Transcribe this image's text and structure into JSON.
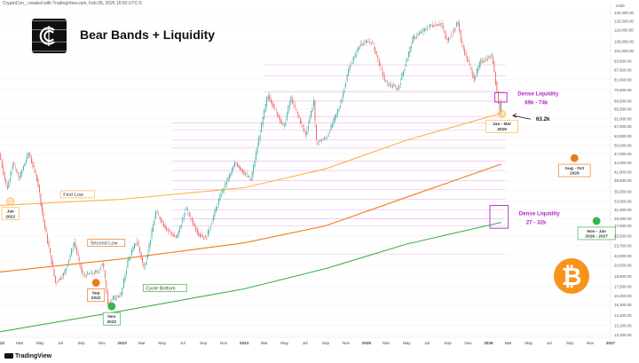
{
  "header": {
    "credit": "CryptoCon_ created with TradingView.com, Feb 08, 2026 16:50 UTC-5"
  },
  "title": "Bear Bands + Liquidity",
  "footer": {
    "brand": "TradingView"
  },
  "colors": {
    "up": "#26a69a",
    "down": "#ef5350",
    "dense_liquidity": "#b224c8",
    "first_low_band": "#ffb347",
    "second_low_band": "#f07a1a",
    "cycle_bottom_band": "#3db34a",
    "bitcoin": "#f7931a"
  },
  "chart_data": {
    "type": "line",
    "scale": "log",
    "ylim": [
      12000,
      138000
    ],
    "xlim": [
      "2022-01-01",
      "2027-01-01"
    ],
    "y_ticks": [
      "134,000.00",
      "126,000.00",
      "118,000.00",
      "108,000.00",
      "101,000.00",
      "93,500.00",
      "87,500.00",
      "81,500.00",
      "75,500.00",
      "69,500.00",
      "65,500.00",
      "61,000.00",
      "57,500.00",
      "53,500.00",
      "50,000.00",
      "47,000.00",
      "44,000.00",
      "41,000.00",
      "38,500.00",
      "35,500.00",
      "33,000.00",
      "31,000.00",
      "29,000.00",
      "27,500.00",
      "25,500.00",
      "23,700.00",
      "22,000.00",
      "20,500.00",
      "18,900.00",
      "17,500.00",
      "16,300.00",
      "15,300.00",
      "14,100.00",
      "13,100.00",
      "12,200.00"
    ],
    "y_unit": "USD",
    "x_ticks": [
      {
        "label": "2022",
        "date": "2022-01-01",
        "bold": true
      },
      {
        "label": "Mar",
        "date": "2022-03-01"
      },
      {
        "label": "May",
        "date": "2022-05-01"
      },
      {
        "label": "Jul",
        "date": "2022-07-01"
      },
      {
        "label": "Sep",
        "date": "2022-09-01"
      },
      {
        "label": "Nov",
        "date": "2022-11-01"
      },
      {
        "label": "2023",
        "date": "2023-01-01",
        "bold": true
      },
      {
        "label": "Mar",
        "date": "2023-03-01"
      },
      {
        "label": "May",
        "date": "2023-05-01"
      },
      {
        "label": "Jul",
        "date": "2023-07-01"
      },
      {
        "label": "Sep",
        "date": "2023-09-01"
      },
      {
        "label": "Nov",
        "date": "2023-11-01"
      },
      {
        "label": "2024",
        "date": "2024-01-01",
        "bold": true
      },
      {
        "label": "Mar",
        "date": "2024-03-01"
      },
      {
        "label": "May",
        "date": "2024-05-01"
      },
      {
        "label": "Jul",
        "date": "2024-07-01"
      },
      {
        "label": "Sep",
        "date": "2024-09-01"
      },
      {
        "label": "Nov",
        "date": "2024-11-01"
      },
      {
        "label": "2025",
        "date": "2025-01-01",
        "bold": true
      },
      {
        "label": "Mar",
        "date": "2025-03-01"
      },
      {
        "label": "May",
        "date": "2025-05-01"
      },
      {
        "label": "Jul",
        "date": "2025-07-01"
      },
      {
        "label": "Sep",
        "date": "2025-09-01"
      },
      {
        "label": "Nov",
        "date": "2025-11-01"
      },
      {
        "label": "2026",
        "date": "2026-01-01",
        "bold": true
      },
      {
        "label": "Mar",
        "date": "2026-03-01"
      },
      {
        "label": "May",
        "date": "2026-05-01"
      },
      {
        "label": "Jul",
        "date": "2026-07-01"
      },
      {
        "label": "Sep",
        "date": "2026-09-01"
      },
      {
        "label": "Nov",
        "date": "2026-11-01"
      },
      {
        "label": "2027",
        "date": "2027-01-01",
        "bold": true
      }
    ],
    "price": [
      [
        "2022-01-01",
        47000
      ],
      [
        "2022-01-24",
        36000
      ],
      [
        "2022-02-10",
        44000
      ],
      [
        "2022-03-01",
        39000
      ],
      [
        "2022-03-29",
        47500
      ],
      [
        "2022-04-25",
        38500
      ],
      [
        "2022-05-12",
        29000
      ],
      [
        "2022-06-18",
        18000
      ],
      [
        "2022-07-13",
        19200
      ],
      [
        "2022-08-13",
        24300
      ],
      [
        "2022-09-07",
        19000
      ],
      [
        "2022-10-24",
        19500
      ],
      [
        "2022-11-06",
        21000
      ],
      [
        "2022-11-21",
        15600
      ],
      [
        "2022-12-31",
        16500
      ],
      [
        "2023-01-20",
        21200
      ],
      [
        "2023-02-16",
        24700
      ],
      [
        "2023-03-10",
        19800
      ],
      [
        "2023-04-14",
        30500
      ],
      [
        "2023-05-15",
        27000
      ],
      [
        "2023-06-15",
        25000
      ],
      [
        "2023-07-13",
        31400
      ],
      [
        "2023-08-18",
        26000
      ],
      [
        "2023-09-11",
        25000
      ],
      [
        "2023-10-24",
        34500
      ],
      [
        "2023-12-08",
        44000
      ],
      [
        "2024-01-23",
        38500
      ],
      [
        "2024-02-28",
        61000
      ],
      [
        "2024-03-14",
        73000
      ],
      [
        "2024-05-01",
        57000
      ],
      [
        "2024-05-21",
        71500
      ],
      [
        "2024-07-05",
        54000
      ],
      [
        "2024-07-29",
        70000
      ],
      [
        "2024-08-05",
        51000
      ],
      [
        "2024-09-06",
        53000
      ],
      [
        "2024-10-15",
        67000
      ],
      [
        "2024-11-12",
        89000
      ],
      [
        "2024-12-17",
        107000
      ],
      [
        "2025-01-20",
        108000
      ],
      [
        "2025-02-28",
        80000
      ],
      [
        "2025-04-07",
        76000
      ],
      [
        "2025-05-22",
        111000
      ],
      [
        "2025-07-14",
        122000
      ],
      [
        "2025-08-14",
        124000
      ],
      [
        "2025-09-01",
        108000
      ],
      [
        "2025-10-06",
        126000
      ],
      [
        "2025-10-10",
        110000
      ],
      [
        "2025-11-21",
        82000
      ],
      [
        "2025-12-10",
        93500
      ],
      [
        "2026-01-14",
        97000
      ],
      [
        "2026-02-05",
        64000
      ],
      [
        "2026-02-08",
        70000
      ]
    ],
    "bands": [
      {
        "name": "First Low",
        "color": "#ffb347",
        "points": [
          [
            "2022-01-01",
            32000
          ],
          [
            "2023-01-01",
            33500
          ],
          [
            "2024-01-01",
            36500
          ],
          [
            "2024-09-01",
            42000
          ],
          [
            "2025-05-01",
            52000
          ],
          [
            "2026-02-08",
            63500
          ]
        ]
      },
      {
        "name": "Second Low",
        "color": "#f07a1a",
        "points": [
          [
            "2022-01-01",
            19500
          ],
          [
            "2023-01-01",
            21500
          ],
          [
            "2024-01-01",
            24200
          ],
          [
            "2024-09-01",
            27500
          ],
          [
            "2025-05-01",
            34000
          ],
          [
            "2026-02-08",
            43500
          ]
        ]
      },
      {
        "name": "Cycle Bottom",
        "color": "#3db34a",
        "points": [
          [
            "2022-01-01",
            12500
          ],
          [
            "2023-01-01",
            14600
          ],
          [
            "2024-01-01",
            17200
          ],
          [
            "2024-09-01",
            20000
          ],
          [
            "2025-05-01",
            24000
          ],
          [
            "2026-02-08",
            28200
          ]
        ]
      }
    ],
    "liquidity_lines": [
      91000,
      84000,
      74500,
      69500,
      62000,
      59000,
      56000,
      52000,
      49000,
      44500,
      41500,
      38500,
      36000,
      33500,
      31000,
      29000,
      27500,
      22300
    ],
    "dense_zones": [
      {
        "label": "Dense Liquidity",
        "range": "69k - 74k",
        "from": "2026-01-20",
        "to": "2026-02-25",
        "low": 69000,
        "high": 74000
      },
      {
        "label": "Dense Liquidity",
        "range": "27 - 32k",
        "from": "2026-01-05",
        "to": "2026-03-01",
        "low": 27000,
        "high": 32000
      }
    ],
    "markers": [
      {
        "date": "2022-02-01",
        "price": 33000,
        "color": "#ffb347",
        "label": [
          "Jan",
          "2022"
        ]
      },
      {
        "date": "2022-10-15",
        "price": 18000,
        "color": "#f07a1a",
        "label": [
          "Sep",
          "2022"
        ]
      },
      {
        "date": "2022-12-01",
        "price": 15100,
        "color": "#3db34a",
        "label": [
          "Nov",
          "2022"
        ]
      },
      {
        "date": "2026-02-10",
        "price": 63200,
        "color": "#ffb347",
        "label": [
          "Jan - Mar",
          "2026"
        ]
      },
      {
        "date": "2026-09-15",
        "price": 45500,
        "color": "#f07a1a",
        "label": [
          "Aug - Oct",
          "2026"
        ]
      },
      {
        "date": "2026-11-20",
        "price": 28500,
        "color": "#3db34a",
        "label": [
          "Nov - Jan",
          "2026 - 2027"
        ]
      }
    ],
    "band_labels": [
      {
        "text": "First Low",
        "date": "2022-07-01",
        "price": 34300,
        "color": "#ffb347"
      },
      {
        "text": "Second Low",
        "date": "2022-09-20",
        "price": 23900,
        "color": "#f07a1a"
      },
      {
        "text": "Cycle Bottom",
        "date": "2023-03-05",
        "price": 17100,
        "color": "#3db34a"
      }
    ],
    "callout": {
      "text": "63.2k",
      "date": "2026-03-15",
      "price": 62400
    }
  }
}
